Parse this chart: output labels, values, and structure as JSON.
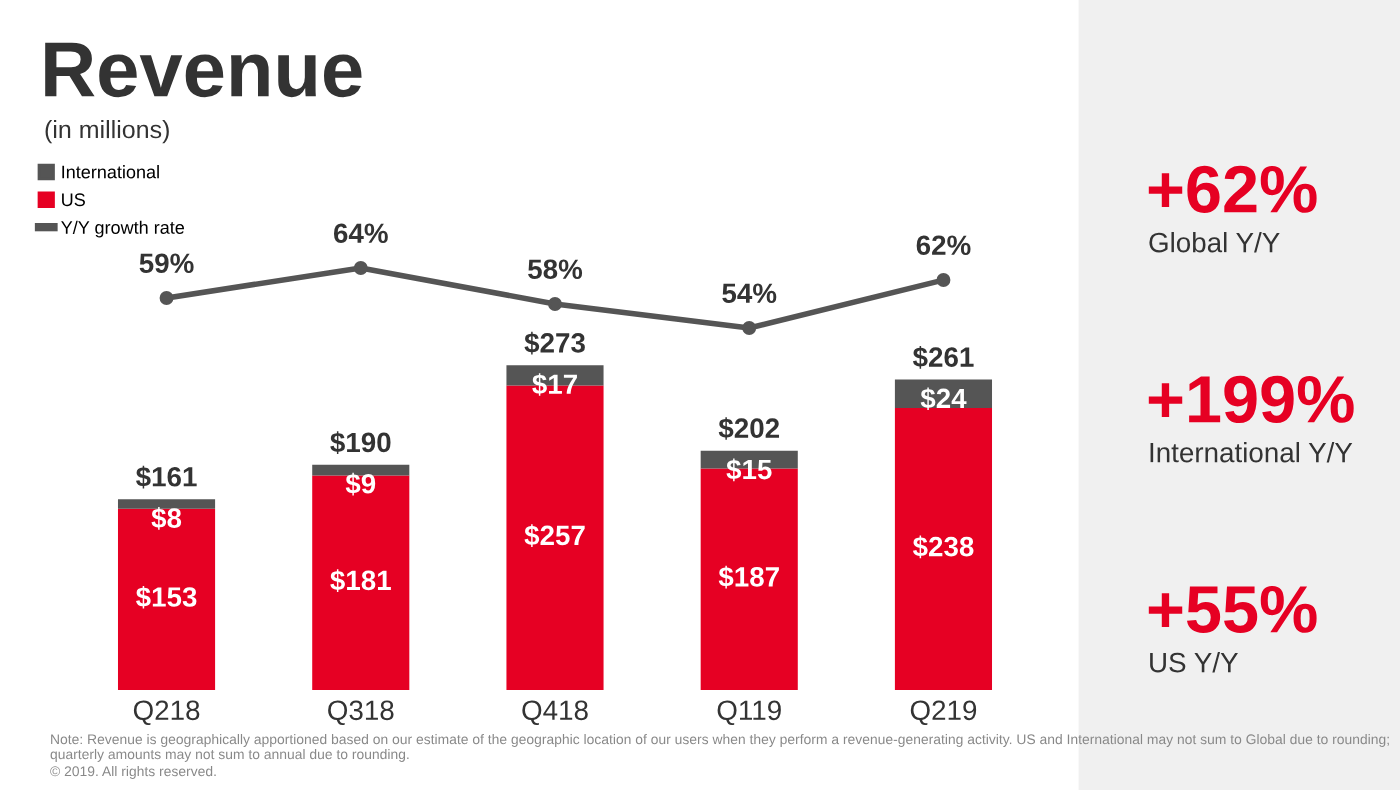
{
  "chart_data": [
    {
      "type": "line",
      "title": "Revenue",
      "subtitle": "(in millions)",
      "categories": [
        null,
        null,
        null,
        null,
        null
      ],
      "series": [
        {
          "name": "Y/Y growth rate",
          "color": "#555555",
          "values": [
            59,
            64,
            58,
            54,
            62
          ],
          "value_labels": [
            "59%",
            "64%",
            "58%",
            "54%",
            "62%"
          ]
        }
      ],
      "marker": "circle",
      "tick_labels": false,
      "legend": "top left"
    },
    {
      "type": "bar",
      "categories": [
        "Q218",
        "Q318",
        "Q418",
        "Q119",
        "Q219"
      ],
      "stacked": true,
      "series": [
        {
          "name": "US",
          "color": "#e60023",
          "values": [
            153,
            181,
            257,
            187,
            238
          ],
          "value_labels": [
            "$153",
            "$181",
            "$257",
            "$187",
            "$238"
          ]
        },
        {
          "name": "International",
          "color": "#555555",
          "values": [
            8,
            9,
            17,
            15,
            24
          ],
          "value_labels": [
            "$8",
            "$9",
            "$17",
            "$15",
            "$24"
          ]
        }
      ],
      "totals": [
        "$161",
        "$190",
        "$273",
        "$202",
        "$261"
      ],
      "tick_labels": "x",
      "legend": "top left",
      "annotations": [
        "+62%",
        "Global Y/Y",
        "+199%",
        "International Y/Y",
        "+55%",
        "US Y/Y",
        "Note: Revenue is geographically apportioned based on our estimate of the geographic location of our users when they perform a revenue-generating activity. US and International may not sum to Global due to rounding; quarterly amounts may not sum to annual due to rounding.",
        "© 2019. All rights reserved."
      ]
    }
  ]
}
